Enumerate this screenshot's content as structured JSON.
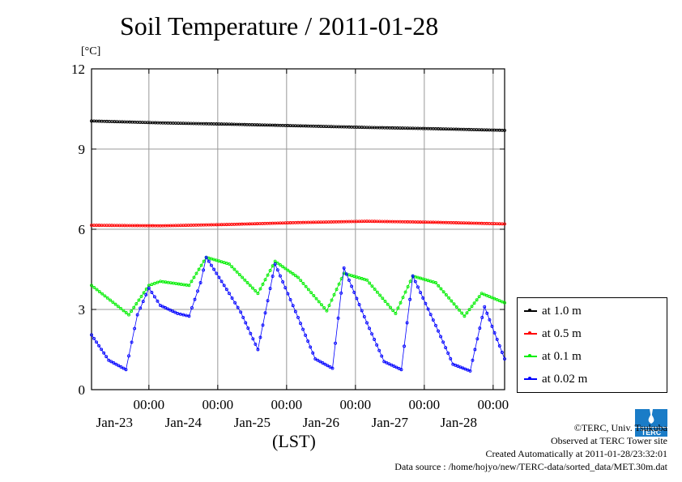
{
  "header": {
    "title": "Soil Temperature / 2011-01-28",
    "unit": "[°C]"
  },
  "footer": {
    "xlabel": "(LST)",
    "copyright": "©TERC, Univ. Tsukuba",
    "observed": "Observed at TERC Tower site",
    "created": "Created Automatically at 2011-01-28/23:32:01",
    "source": "Data source : /home/hojyo/new/TERC-data/sorted_data/MET.30m.dat",
    "logo_text": "TERC",
    "logo_icon": "terc-logo-icon"
  },
  "legend": [
    {
      "label": "at 1.0 m",
      "color": "#000000"
    },
    {
      "label": "at 0.5 m",
      "color": "#ff0000"
    },
    {
      "label": "at 0.1 m",
      "color": "#00ee00"
    },
    {
      "label": "at 0.02 m",
      "color": "#0000ff"
    }
  ],
  "chart_data": {
    "type": "line",
    "title": "Soil Temperature / 2011-01-28",
    "ylabel": "[°C]",
    "xlabel": "(LST)",
    "ylim": [
      0,
      12
    ],
    "xlim": [
      "2011-01-22T04:00",
      "2011-01-28T04:00"
    ],
    "yticks": [
      0,
      3,
      6,
      9,
      12
    ],
    "xticks": [
      {
        "time": "2011-01-23T00:00",
        "label": "00:00",
        "date": "Jan-23"
      },
      {
        "time": "2011-01-24T00:00",
        "label": "00:00",
        "date": "Jan-24"
      },
      {
        "time": "2011-01-25T00:00",
        "label": "00:00",
        "date": "Jan-25"
      },
      {
        "time": "2011-01-26T00:00",
        "label": "00:00",
        "date": "Jan-26"
      },
      {
        "time": "2011-01-27T00:00",
        "label": "00:00",
        "date": "Jan-27"
      },
      {
        "time": "2011-01-28T00:00",
        "label": "00:00",
        "date": "Jan-28"
      }
    ],
    "grid": true,
    "legend_position": "right",
    "series": [
      {
        "name": "at 1.0 m",
        "color": "#000000",
        "points": [
          [
            "2011-01-22T04:00",
            10.05
          ],
          [
            "2011-01-23T04:00",
            9.98
          ],
          [
            "2011-01-24T04:00",
            9.93
          ],
          [
            "2011-01-25T04:00",
            9.87
          ],
          [
            "2011-01-26T04:00",
            9.81
          ],
          [
            "2011-01-27T04:00",
            9.76
          ],
          [
            "2011-01-28T04:00",
            9.7
          ]
        ]
      },
      {
        "name": "at 0.5 m",
        "color": "#ff0000",
        "points": [
          [
            "2011-01-22T04:00",
            6.15
          ],
          [
            "2011-01-23T04:00",
            6.13
          ],
          [
            "2011-01-24T04:00",
            6.18
          ],
          [
            "2011-01-25T04:00",
            6.25
          ],
          [
            "2011-01-26T04:00",
            6.3
          ],
          [
            "2011-01-27T04:00",
            6.26
          ],
          [
            "2011-01-28T04:00",
            6.2
          ]
        ]
      },
      {
        "name": "at 0.1 m",
        "color": "#00ee00",
        "points": [
          [
            "2011-01-22T04:00",
            3.9
          ],
          [
            "2011-01-22T17:00",
            2.8
          ],
          [
            "2011-01-23T00:00",
            3.9
          ],
          [
            "2011-01-23T04:00",
            4.05
          ],
          [
            "2011-01-23T14:00",
            3.9
          ],
          [
            "2011-01-23T20:00",
            4.95
          ],
          [
            "2011-01-24T04:00",
            4.7
          ],
          [
            "2011-01-24T14:00",
            3.6
          ],
          [
            "2011-01-24T20:00",
            4.8
          ],
          [
            "2011-01-25T04:00",
            4.2
          ],
          [
            "2011-01-25T14:00",
            2.95
          ],
          [
            "2011-01-25T20:00",
            4.35
          ],
          [
            "2011-01-26T04:00",
            4.1
          ],
          [
            "2011-01-26T14:00",
            2.85
          ],
          [
            "2011-01-26T20:00",
            4.25
          ],
          [
            "2011-01-27T04:00",
            4.0
          ],
          [
            "2011-01-27T14:00",
            2.75
          ],
          [
            "2011-01-27T20:00",
            3.6
          ],
          [
            "2011-01-28T04:00",
            3.25
          ]
        ]
      },
      {
        "name": "at 0.02 m",
        "color": "#0000ff",
        "points": [
          [
            "2011-01-22T04:00",
            2.05
          ],
          [
            "2011-01-22T10:00",
            1.1
          ],
          [
            "2011-01-22T16:00",
            0.75
          ],
          [
            "2011-01-22T20:00",
            2.8
          ],
          [
            "2011-01-23T00:00",
            3.8
          ],
          [
            "2011-01-23T04:00",
            3.15
          ],
          [
            "2011-01-23T10:00",
            2.85
          ],
          [
            "2011-01-23T14:00",
            2.75
          ],
          [
            "2011-01-23T18:00",
            4.0
          ],
          [
            "2011-01-23T20:00",
            4.95
          ],
          [
            "2011-01-24T04:00",
            3.6
          ],
          [
            "2011-01-24T08:00",
            2.9
          ],
          [
            "2011-01-24T14:00",
            1.5
          ],
          [
            "2011-01-24T20:00",
            4.7
          ],
          [
            "2011-01-25T04:00",
            2.7
          ],
          [
            "2011-01-25T10:00",
            1.15
          ],
          [
            "2011-01-25T16:00",
            0.8
          ],
          [
            "2011-01-25T20:00",
            4.55
          ],
          [
            "2011-01-26T04:00",
            2.5
          ],
          [
            "2011-01-26T10:00",
            1.05
          ],
          [
            "2011-01-26T16:00",
            0.75
          ],
          [
            "2011-01-26T20:00",
            4.25
          ],
          [
            "2011-01-27T04:00",
            2.4
          ],
          [
            "2011-01-27T10:00",
            0.95
          ],
          [
            "2011-01-27T16:00",
            0.7
          ],
          [
            "2011-01-27T21:00",
            3.1
          ],
          [
            "2011-01-28T04:00",
            1.15
          ]
        ]
      }
    ]
  }
}
